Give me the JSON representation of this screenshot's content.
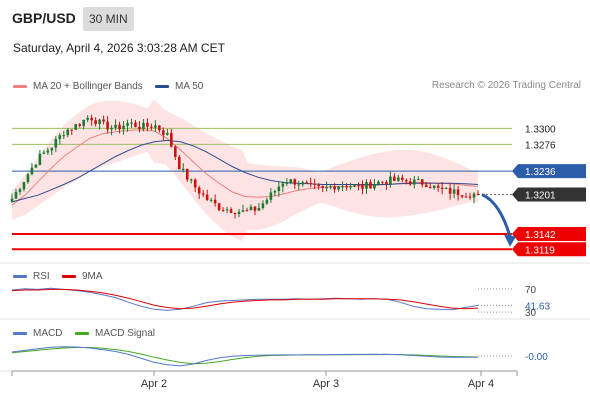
{
  "header": {
    "symbol": "GBP/USD",
    "timeframe": "30 MIN",
    "timestamp": "Saturday, April 4, 2026 3:03:28 AM CET",
    "copyright": "Research © 2026 Trading Central"
  },
  "legend": {
    "main": [
      {
        "label": "MA 20 + Bollinger Bands",
        "color": "#f08080"
      },
      {
        "label": "MA 50",
        "color": "#2b4d8f"
      }
    ],
    "rsi": [
      {
        "label": "RSI",
        "color": "#5577cc"
      },
      {
        "label": "9MA",
        "color": "#dd0000"
      }
    ],
    "macd": [
      {
        "label": "MACD",
        "color": "#5577cc"
      },
      {
        "label": "MACD Signal",
        "color": "#44aa22"
      }
    ]
  },
  "colors": {
    "up": "#1a7a30",
    "down": "#cc1111",
    "band_fill": "#fde3e3",
    "ma20": "#f08080",
    "ma50": "#2b4d8f",
    "resistance": "#9cc060",
    "pivot": "#2b5da8",
    "support": "#ee0000",
    "last": "#333333",
    "arrow": "#2b5da8"
  },
  "chart_data": [
    {
      "type": "line",
      "panel": "price",
      "subtype": "candlestick",
      "x_labels": [
        "Apr 2",
        "Apr 3",
        "Apr 4"
      ],
      "price_path": [
        1.3195,
        1.3225,
        1.3255,
        1.3272,
        1.3295,
        1.3305,
        1.3318,
        1.3305,
        1.33,
        1.3308,
        1.3302,
        1.3305,
        1.329,
        1.324,
        1.3215,
        1.3195,
        1.3182,
        1.3178,
        1.3175,
        1.318,
        1.32,
        1.3222,
        1.322,
        1.3212,
        1.3208,
        1.3215,
        1.3215,
        1.3212,
        1.3218,
        1.3222,
        1.3222,
        1.322,
        1.3218,
        1.3208,
        1.3205,
        1.3203,
        1.3201
      ],
      "ma20": [
        1.3185,
        1.32,
        1.322,
        1.324,
        1.3258,
        1.3272,
        1.3285,
        1.3292,
        1.3295,
        1.3297,
        1.3298,
        1.3296,
        1.3285,
        1.3268,
        1.325,
        1.3232,
        1.3218,
        1.3205,
        1.3198,
        1.3197,
        1.3198,
        1.3202,
        1.3207,
        1.321,
        1.3212,
        1.3213,
        1.3213,
        1.3214,
        1.3215,
        1.3216,
        1.3218,
        1.3219,
        1.3219,
        1.3218,
        1.3217,
        1.3215,
        1.3213
      ],
      "ma50": [
        1.319,
        1.3195,
        1.32,
        1.3208,
        1.3216,
        1.3225,
        1.3236,
        1.3247,
        1.3258,
        1.3267,
        1.3275,
        1.328,
        1.3282,
        1.328,
        1.3274,
        1.3265,
        1.3254,
        1.3243,
        1.3234,
        1.3227,
        1.3222,
        1.3219,
        1.3218,
        1.3217,
        1.3216,
        1.3216,
        1.3216,
        1.3216,
        1.3216,
        1.3216,
        1.3217,
        1.3218,
        1.3218,
        1.3218,
        1.3218,
        1.3217,
        1.3216
      ],
      "levels": [
        {
          "value": "1.3300",
          "kind": "resistance"
        },
        {
          "value": "1.3276",
          "kind": "resistance"
        },
        {
          "value": "1.3236",
          "kind": "pivot"
        },
        {
          "value": "1.3201",
          "kind": "last"
        },
        {
          "value": "1.3142",
          "kind": "support"
        },
        {
          "value": "1.3119",
          "kind": "support"
        }
      ],
      "ylim": [
        1.31,
        1.335
      ]
    },
    {
      "type": "line",
      "panel": "rsi",
      "ticks": [
        "70",
        "41.63",
        "30"
      ],
      "ylim": [
        20,
        80
      ],
      "rsi": [
        68,
        70,
        69,
        71,
        69,
        67,
        64,
        60,
        55,
        47,
        40,
        35,
        33,
        35,
        40,
        46,
        49,
        50,
        51,
        52,
        52,
        52,
        53,
        52,
        53,
        54,
        53,
        52,
        53,
        52,
        47,
        40,
        36,
        35,
        34,
        38,
        41.63
      ],
      "rsi_ma": [
        67,
        68,
        68,
        69,
        69,
        68,
        66,
        63,
        59,
        54,
        48,
        42,
        38,
        36,
        37,
        40,
        44,
        47,
        49,
        50,
        51,
        51,
        52,
        52,
        52,
        53,
        53,
        53,
        53,
        52,
        51,
        48,
        44,
        40,
        37,
        36,
        37
      ]
    },
    {
      "type": "line",
      "panel": "macd",
      "ticks": [
        "-0.00"
      ],
      "ylim": [
        -1.0,
        1.0
      ],
      "macd": [
        0.25,
        0.35,
        0.45,
        0.55,
        0.58,
        0.56,
        0.5,
        0.4,
        0.28,
        0.1,
        -0.15,
        -0.4,
        -0.55,
        -0.62,
        -0.5,
        -0.28,
        -0.12,
        -0.02,
        0.03,
        0.05,
        0.06,
        0.07,
        0.07,
        0.08,
        0.08,
        0.09,
        0.1,
        0.1,
        0.11,
        0.1,
        0.08,
        0.03,
        -0.02,
        -0.06,
        -0.08,
        -0.08,
        -0.08
      ],
      "signal": [
        0.2,
        0.28,
        0.36,
        0.44,
        0.5,
        0.53,
        0.53,
        0.48,
        0.4,
        0.28,
        0.12,
        -0.08,
        -0.25,
        -0.4,
        -0.48,
        -0.45,
        -0.35,
        -0.22,
        -0.1,
        -0.02,
        0.03,
        0.05,
        0.06,
        0.07,
        0.07,
        0.08,
        0.08,
        0.09,
        0.09,
        0.1,
        0.09,
        0.07,
        0.04,
        0.0,
        -0.03,
        -0.05,
        -0.06
      ]
    }
  ]
}
